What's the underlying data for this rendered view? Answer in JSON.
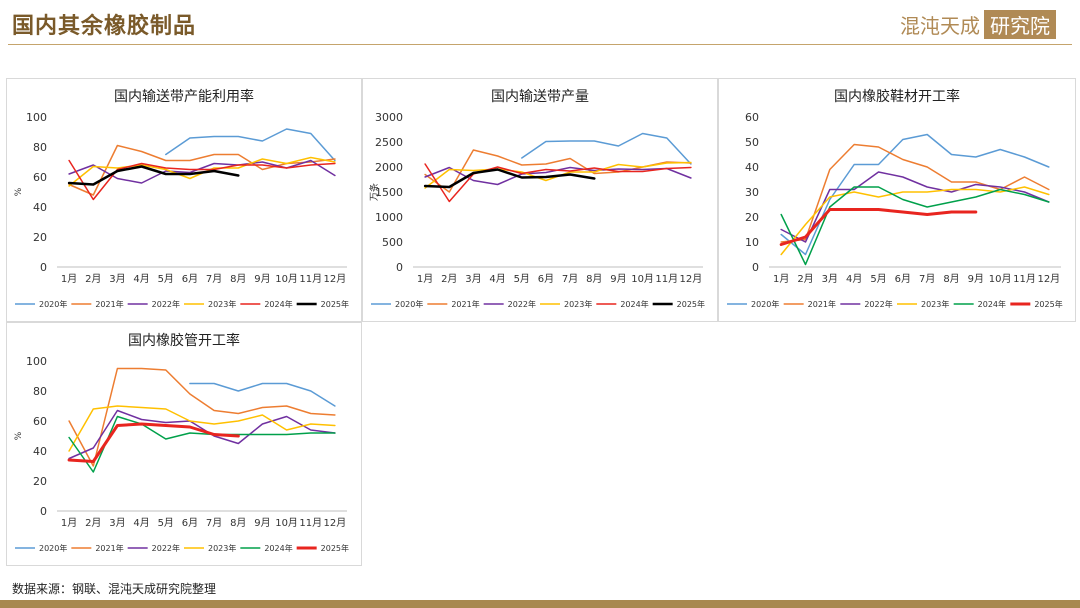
{
  "page": {
    "title": "国内其余橡胶制品",
    "logo_text": "混沌天成",
    "logo_box": "研究院",
    "source": "数据来源：钢联、混沌天成研究院整理"
  },
  "chart_data": [
    {
      "type": "line",
      "title": "国内输送带产能利用率",
      "ylabel": "%",
      "ylim": [
        0,
        100
      ],
      "yticks": [
        0,
        20,
        40,
        60,
        80,
        100
      ],
      "categories": [
        "1月",
        "2月",
        "3月",
        "4月",
        "5月",
        "6月",
        "7月",
        "8月",
        "9月",
        "10月",
        "11月",
        "12月"
      ],
      "series": [
        {
          "name": "2020年",
          "color": "#5b9bd5",
          "width": 1.5,
          "values": [
            null,
            null,
            null,
            null,
            75,
            86,
            87,
            87,
            84,
            92,
            89,
            71
          ]
        },
        {
          "name": "2021年",
          "color": "#ed7d31",
          "width": 1.5,
          "values": [
            55,
            48,
            81,
            77,
            71,
            71,
            75,
            75,
            65,
            69,
            70,
            72
          ]
        },
        {
          "name": "2022年",
          "color": "#7030a0",
          "width": 1.5,
          "values": [
            62,
            68,
            59,
            56,
            64,
            63,
            69,
            68,
            70,
            66,
            71,
            61
          ]
        },
        {
          "name": "2023年",
          "color": "#ffc000",
          "width": 1.5,
          "values": [
            54,
            67,
            66,
            68,
            65,
            59,
            66,
            66,
            72,
            69,
            73,
            70
          ]
        },
        {
          "name": "2024年",
          "color": "#e8251f",
          "width": 1.5,
          "values": [
            71,
            45,
            65,
            69,
            66,
            65,
            65,
            68,
            68,
            66,
            68,
            69
          ]
        },
        {
          "name": "2025年",
          "color": "#000000",
          "width": 2.5,
          "values": [
            56,
            55,
            64,
            67,
            62,
            62,
            64,
            61,
            null,
            null,
            null,
            null
          ]
        }
      ]
    },
    {
      "type": "line",
      "title": "国内输送带产量",
      "ylabel": "万条",
      "ylim": [
        0,
        3000
      ],
      "yticks": [
        0,
        500,
        1000,
        1500,
        2000,
        2500,
        3000
      ],
      "categories": [
        "1月",
        "2月",
        "3月",
        "4月",
        "5月",
        "6月",
        "7月",
        "8月",
        "9月",
        "10月",
        "11月",
        "12月"
      ],
      "series": [
        {
          "name": "2020年",
          "color": "#5b9bd5",
          "width": 1.5,
          "values": [
            null,
            null,
            null,
            null,
            2180,
            2510,
            2520,
            2520,
            2420,
            2670,
            2580,
            2060
          ]
        },
        {
          "name": "2021年",
          "color": "#ed7d31",
          "width": 1.5,
          "values": [
            1850,
            1500,
            2340,
            2220,
            2040,
            2060,
            2170,
            1870,
            1900,
            2000,
            2100,
            2080
          ]
        },
        {
          "name": "2022年",
          "color": "#7030a0",
          "width": 1.5,
          "values": [
            1800,
            1990,
            1730,
            1650,
            1860,
            1890,
            1990,
            1930,
            1960,
            1950,
            1970,
            1780
          ]
        },
        {
          "name": "2023年",
          "color": "#ffc000",
          "width": 1.5,
          "values": [
            1580,
            1950,
            1930,
            1960,
            1900,
            1730,
            1900,
            1900,
            2050,
            2000,
            2080,
            2090
          ]
        },
        {
          "name": "2024年",
          "color": "#e8251f",
          "width": 1.5,
          "values": [
            2060,
            1310,
            1860,
            2000,
            1870,
            1950,
            1920,
            1980,
            1910,
            1910,
            1970,
            1990
          ]
        },
        {
          "name": "2025年",
          "color": "#000000",
          "width": 2.5,
          "values": [
            1620,
            1600,
            1880,
            1950,
            1790,
            1800,
            1850,
            1770,
            null,
            null,
            null,
            null
          ]
        }
      ]
    },
    {
      "type": "line",
      "title": "国内橡胶鞋材开工率",
      "ylabel": "",
      "ylim": [
        0,
        60
      ],
      "yticks": [
        0,
        10,
        20,
        30,
        40,
        50,
        60
      ],
      "categories": [
        "1月",
        "2月",
        "3月",
        "4月",
        "5月",
        "6月",
        "7月",
        "8月",
        "9月",
        "10月",
        "11月",
        "12月"
      ],
      "series": [
        {
          "name": "2020年",
          "color": "#5b9bd5",
          "width": 1.5,
          "values": [
            13,
            5,
            27,
            41,
            41,
            51,
            53,
            45,
            44,
            47,
            44,
            40
          ]
        },
        {
          "name": "2021年",
          "color": "#ed7d31",
          "width": 1.5,
          "values": [
            10,
            11,
            39,
            49,
            48,
            43,
            40,
            34,
            34,
            31,
            36,
            31
          ]
        },
        {
          "name": "2022年",
          "color": "#7030a0",
          "width": 1.5,
          "values": [
            15,
            10,
            31,
            31,
            38,
            36,
            32,
            30,
            33,
            32,
            30,
            26
          ]
        },
        {
          "name": "2023年",
          "color": "#ffc000",
          "width": 1.5,
          "values": [
            5,
            17,
            28,
            30,
            28,
            30,
            30,
            31,
            31,
            30,
            32,
            29
          ]
        },
        {
          "name": "2024年",
          "color": "#00a04a",
          "width": 1.5,
          "values": [
            21,
            1,
            24,
            32,
            32,
            27,
            24,
            26,
            28,
            31,
            29,
            26
          ]
        },
        {
          "name": "2025年",
          "color": "#e8251f",
          "width": 3,
          "values": [
            9,
            12,
            23,
            23,
            23,
            22,
            21,
            22,
            22,
            null,
            null,
            null
          ]
        }
      ]
    },
    {
      "type": "line",
      "title": "国内橡胶管开工率",
      "ylabel": "%",
      "ylim": [
        0,
        100
      ],
      "yticks": [
        0,
        20,
        40,
        60,
        80,
        100
      ],
      "categories": [
        "1月",
        "2月",
        "3月",
        "4月",
        "5月",
        "6月",
        "7月",
        "8月",
        "9月",
        "10月",
        "11月",
        "12月"
      ],
      "series": [
        {
          "name": "2020年",
          "color": "#5b9bd5",
          "width": 1.5,
          "values": [
            null,
            null,
            null,
            null,
            null,
            85,
            85,
            80,
            85,
            85,
            80,
            70
          ]
        },
        {
          "name": "2021年",
          "color": "#ed7d31",
          "width": 1.5,
          "values": [
            60,
            30,
            95,
            95,
            94,
            78,
            67,
            65,
            69,
            70,
            65,
            64
          ]
        },
        {
          "name": "2022年",
          "color": "#7030a0",
          "width": 1.5,
          "values": [
            35,
            42,
            67,
            61,
            59,
            60,
            50,
            45,
            58,
            63,
            54,
            52
          ]
        },
        {
          "name": "2023年",
          "color": "#ffc000",
          "width": 1.5,
          "values": [
            40,
            68,
            70,
            69,
            68,
            60,
            58,
            60,
            64,
            54,
            58,
            57
          ]
        },
        {
          "name": "2024年",
          "color": "#00a04a",
          "width": 1.5,
          "values": [
            49,
            26,
            63,
            58,
            48,
            52,
            51,
            51,
            51,
            51,
            52,
            52
          ]
        },
        {
          "name": "2025年",
          "color": "#e8251f",
          "width": 3,
          "values": [
            34,
            33,
            57,
            58,
            57,
            56,
            51,
            50,
            null,
            null,
            null,
            null
          ]
        }
      ]
    }
  ]
}
